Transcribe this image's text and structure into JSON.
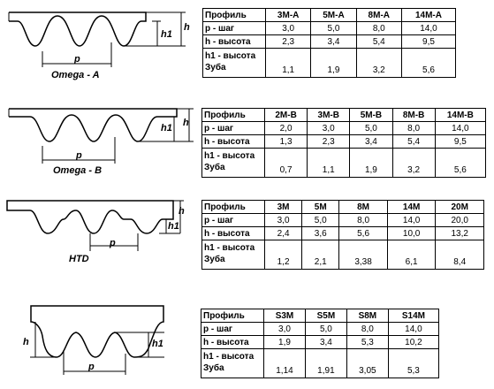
{
  "diagrams": [
    {
      "caption": "Omega - A",
      "p": "p",
      "h1": "h1",
      "h": "h"
    },
    {
      "caption": "Omega - B",
      "p": "p",
      "h1": "h1",
      "h": "h"
    },
    {
      "caption": "HTD",
      "p": "p",
      "h1": "h1",
      "h": "h"
    },
    {
      "caption": "",
      "p": "p",
      "h1": "h1",
      "h": "h"
    }
  ],
  "row_labels": {
    "profile": "Профиль",
    "pitch": "р - шаг",
    "height": "h - высота",
    "tooth_line1": "h1 - высота",
    "tooth_line2": "Зуба"
  },
  "tables": [
    {
      "headers": [
        "3M-A",
        "5M-A",
        "8M-A",
        "14M-A"
      ],
      "pitch": [
        "3,0",
        "5,0",
        "8,0",
        "14,0"
      ],
      "height": [
        "2,3",
        "3,4",
        "5,4",
        "9,5"
      ],
      "tooth": [
        "1,1",
        "1,9",
        "3,2",
        "5,6"
      ]
    },
    {
      "headers": [
        "2M-B",
        "3M-B",
        "5M-B",
        "8M-B",
        "14M-B"
      ],
      "pitch": [
        "2,0",
        "3,0",
        "5,0",
        "8,0",
        "14,0"
      ],
      "height": [
        "1,3",
        "2,3",
        "3,4",
        "5,4",
        "9,5"
      ],
      "tooth": [
        "0,7",
        "1,1",
        "1,9",
        "3,2",
        "5,6"
      ]
    },
    {
      "headers": [
        "3M",
        "5M",
        "8M",
        "14M",
        "20M"
      ],
      "pitch": [
        "3,0",
        "5,0",
        "8,0",
        "14,0",
        "20,0"
      ],
      "height": [
        "2,4",
        "3,6",
        "5,6",
        "10,0",
        "13,2"
      ],
      "tooth": [
        "1,2",
        "2,1",
        "3,38",
        "6,1",
        "8,4"
      ]
    },
    {
      "headers": [
        "S3M",
        "S5M",
        "S8M",
        "S14M"
      ],
      "pitch": [
        "3,0",
        "5,0",
        "8,0",
        "14,0"
      ],
      "height": [
        "1,9",
        "3,4",
        "5,3",
        "10,2"
      ],
      "tooth": [
        "1,14",
        "1,91",
        "3,05",
        "5,3"
      ]
    }
  ]
}
